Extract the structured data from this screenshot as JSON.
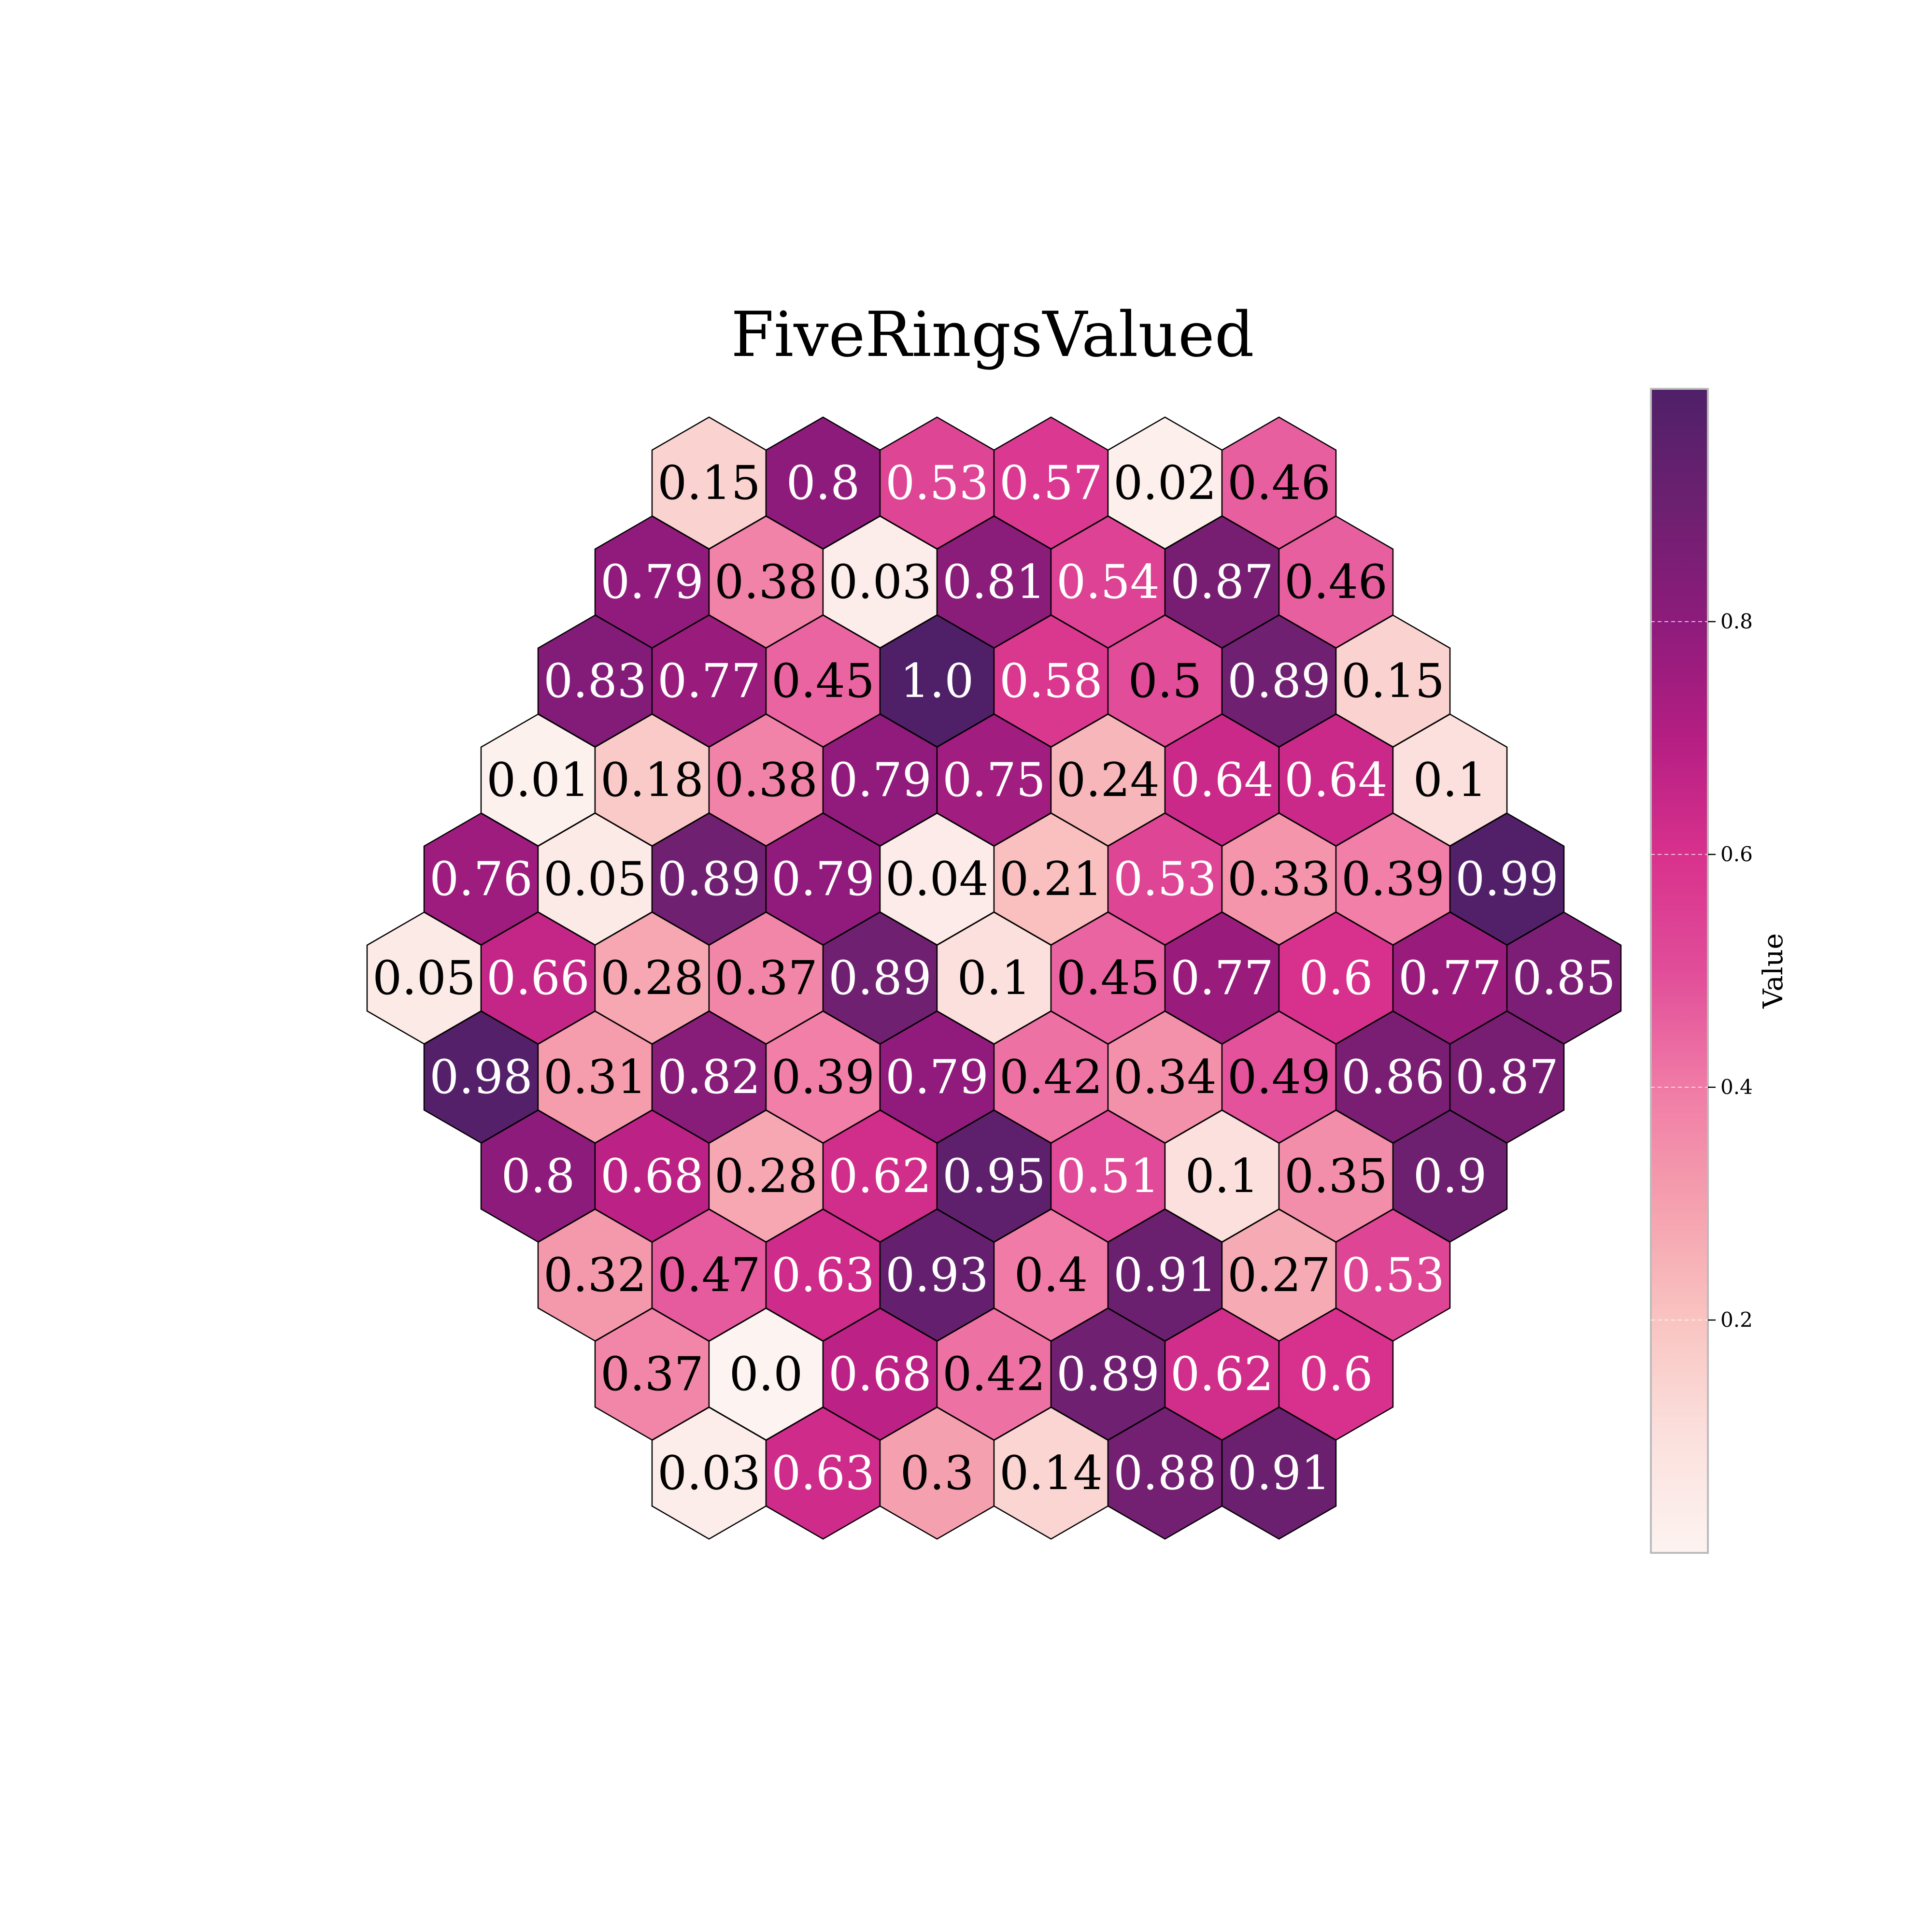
{
  "chart_data": {
    "type": "heatmap",
    "layout": "hexagonal-grid",
    "title": "FiveRingsValued",
    "colorbar": {
      "label": "Value",
      "range": [
        0.0,
        1.0
      ],
      "ticks": [
        0.2,
        0.4,
        0.6,
        0.8
      ],
      "tick_labels": [
        "0.2",
        "0.4",
        "0.6",
        "0.8"
      ],
      "colormap": [
        "#fdf3f0",
        "#fbe0dd",
        "#f9c4c1",
        "#f5a0ae",
        "#f07ba6",
        "#e14d99",
        "#d8318d",
        "#b51e83",
        "#8d1b7b",
        "#6d2070",
        "#4f2068"
      ]
    },
    "rows": [
      {
        "indent": 5,
        "values": [
          "0.15",
          "0.8",
          "0.53",
          "0.57",
          "0.02",
          "0.46"
        ]
      },
      {
        "indent": 4,
        "values": [
          "0.79",
          "0.38",
          "0.03",
          "0.81",
          "0.54",
          "0.87",
          "0.46"
        ]
      },
      {
        "indent": 3,
        "values": [
          "0.83",
          "0.77",
          "0.45",
          "1.0",
          "0.58",
          "0.5",
          "0.89",
          "0.15"
        ]
      },
      {
        "indent": 2,
        "values": [
          "0.01",
          "0.18",
          "0.38",
          "0.79",
          "0.75",
          "0.24",
          "0.64",
          "0.64",
          "0.1"
        ]
      },
      {
        "indent": 1,
        "values": [
          "0.76",
          "0.05",
          "0.89",
          "0.79",
          "0.04",
          "0.21",
          "0.53",
          "0.33",
          "0.39",
          "0.99"
        ]
      },
      {
        "indent": 0,
        "values": [
          "0.05",
          "0.66",
          "0.28",
          "0.37",
          "0.89",
          "0.1",
          "0.45",
          "0.77",
          "0.6",
          "0.77",
          "0.85"
        ]
      },
      {
        "indent": 1,
        "values": [
          "0.98",
          "0.31",
          "0.82",
          "0.39",
          "0.79",
          "0.42",
          "0.34",
          "0.49",
          "0.86",
          "0.87"
        ]
      },
      {
        "indent": 2,
        "values": [
          "0.8",
          "0.68",
          "0.28",
          "0.62",
          "0.95",
          "0.51",
          "0.1",
          "0.35",
          "0.9"
        ]
      },
      {
        "indent": 3,
        "values": [
          "0.32",
          "0.47",
          "0.63",
          "0.93",
          "0.4",
          "0.91",
          "0.27",
          "0.53"
        ]
      },
      {
        "indent": 4,
        "values": [
          "0.37",
          "0.0",
          "0.68",
          "0.42",
          "0.89",
          "0.62",
          "0.6"
        ]
      },
      {
        "indent": 5,
        "values": [
          "0.03",
          "0.63",
          "0.3",
          "0.14",
          "0.88",
          "0.91"
        ]
      }
    ]
  }
}
